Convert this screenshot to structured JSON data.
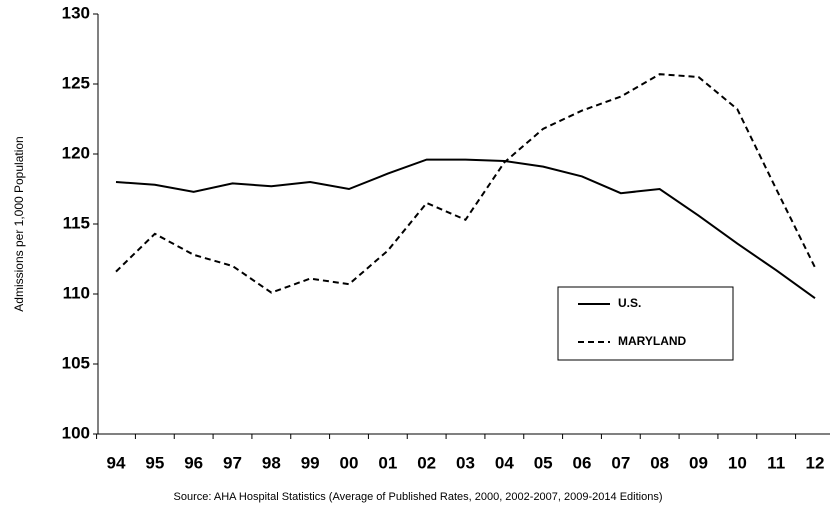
{
  "chart_data": {
    "type": "line",
    "y_label": "Admissions per 1,000 Population",
    "source": "Source:  AHA Hospital Statistics (Average of Published Rates, 2000, 2002-2007, 2009-2014 Editions)",
    "categories": [
      "94",
      "95",
      "96",
      "97",
      "98",
      "99",
      "00",
      "01",
      "02",
      "03",
      "04",
      "05",
      "06",
      "07",
      "08",
      "09",
      "10",
      "11",
      "12"
    ],
    "series": [
      {
        "name": "U.S.",
        "color": "#000000",
        "style": "solid",
        "values": [
          118.0,
          117.8,
          117.3,
          117.9,
          117.7,
          118.0,
          117.5,
          118.6,
          119.6,
          119.6,
          119.5,
          119.1,
          118.4,
          117.2,
          117.5,
          115.6,
          113.6,
          111.7,
          109.7
        ]
      },
      {
        "name": "MARYLAND",
        "color": "#000000",
        "style": "dashed",
        "values": [
          111.6,
          114.3,
          112.8,
          112.0,
          110.1,
          111.1,
          110.7,
          113.1,
          116.5,
          115.3,
          119.4,
          121.8,
          123.1,
          124.1,
          125.7,
          125.5,
          123.2,
          117.5,
          111.9
        ]
      }
    ],
    "ylim": [
      100,
      130
    ],
    "yticks": [
      100,
      105,
      110,
      115,
      120,
      125,
      130
    ],
    "grid": false
  }
}
